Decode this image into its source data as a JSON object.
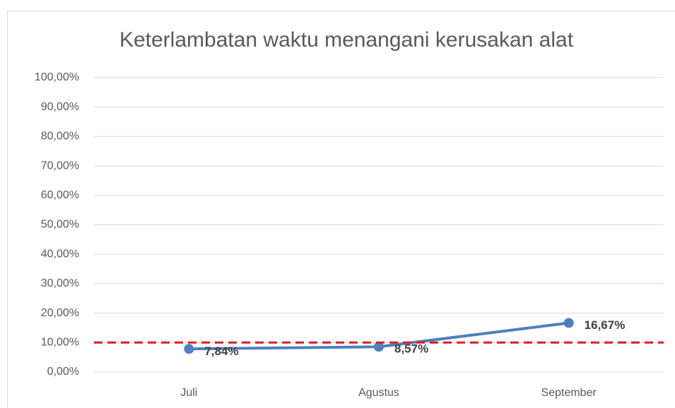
{
  "chart_data": {
    "type": "line",
    "title": "Keterlambatan waktu menangani kerusakan alat",
    "categories": [
      "Juli",
      "Agustus",
      "September"
    ],
    "series": [
      {
        "name": "Keterlambatan",
        "color": "#4f7fbd",
        "values": [
          7.84,
          8.57,
          16.67
        ],
        "value_labels": [
          "7,84%",
          "8,57%",
          "16,67%"
        ]
      }
    ],
    "ylim": [
      0,
      100
    ],
    "yticks": [
      {
        "value": 0,
        "label": "0,00%"
      },
      {
        "value": 10,
        "label": "10,00%"
      },
      {
        "value": 20,
        "label": "20,00%"
      },
      {
        "value": 30,
        "label": "30,00%"
      },
      {
        "value": 40,
        "label": "40,00%"
      },
      {
        "value": 50,
        "label": "50,00%"
      },
      {
        "value": 60,
        "label": "60,00%"
      },
      {
        "value": 70,
        "label": "70,00%"
      },
      {
        "value": 80,
        "label": "80,00%"
      },
      {
        "value": 90,
        "label": "90,00%"
      },
      {
        "value": 100,
        "label": "100,00%"
      }
    ],
    "grid": true,
    "reference_line": {
      "value": 10,
      "color": "#e31a1c"
    }
  }
}
